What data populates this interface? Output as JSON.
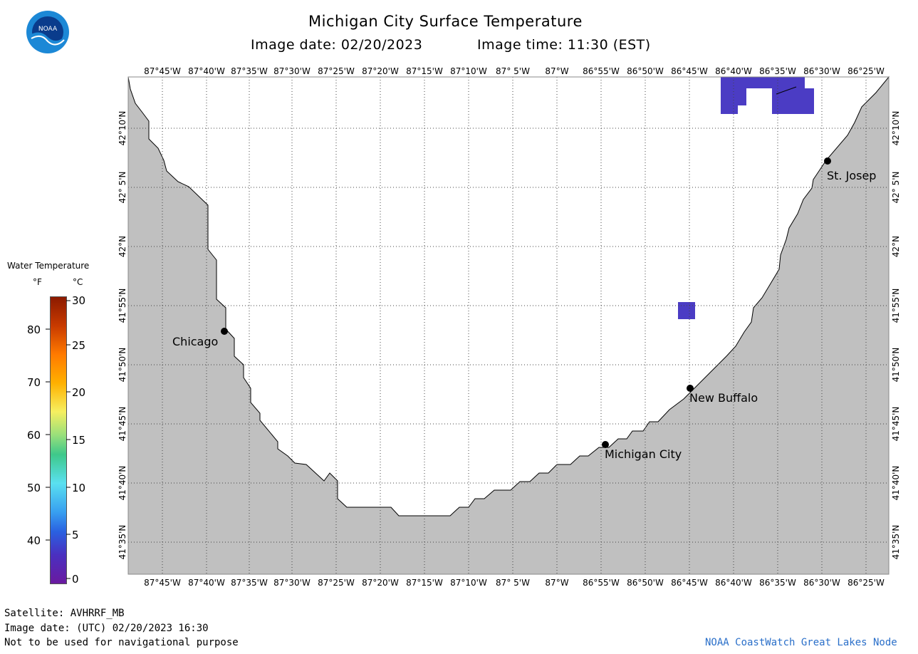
{
  "header": {
    "title": "Michigan City Surface Temperature",
    "image_date": "Image date: 02/20/2023",
    "image_time": "Image time: 11:30 (EST)",
    "logo_text": "NOAA"
  },
  "map": {
    "lon_labels": [
      "87°45'W",
      "87°40'W",
      "87°35'W",
      "87°30'W",
      "87°25'W",
      "87°20'W",
      "87°15'W",
      "87°10'W",
      "87° 5'W",
      "87°W",
      "86°55'W",
      "86°50'W",
      "86°45'W",
      "86°40'W",
      "86°35'W",
      "86°30'W",
      "86°25'W"
    ],
    "lat_labels": [
      "42°10'N",
      "42° 5'N",
      "42°N",
      "41°55'N",
      "41°50'N",
      "41°45'N",
      "41°40'N",
      "41°35'N"
    ],
    "cities": [
      {
        "name": "Chicago"
      },
      {
        "name": "St. Josep"
      },
      {
        "name": "New Buffalo"
      },
      {
        "name": "Michigan City"
      }
    ],
    "colors": {
      "land": "#c0c0c0",
      "water": "#ffffff",
      "ice_pixels": "#4b3cc4",
      "grid": "#555555"
    }
  },
  "legend": {
    "title": "Water Temperature",
    "unit_f": "°F",
    "unit_c": "°C",
    "f_ticks": [
      "80",
      "70",
      "60",
      "50",
      "40"
    ],
    "c_ticks": [
      "30",
      "25",
      "20",
      "15",
      "10",
      "5",
      "0"
    ]
  },
  "footer": {
    "satellite": "Satellite: AVHRRF_MB",
    "utc_date": "Image date: (UTC) 02/20/2023  16:30",
    "disclaimer": "Not to be used for navigational purpose",
    "credit": "NOAA CoastWatch Great Lakes Node"
  }
}
